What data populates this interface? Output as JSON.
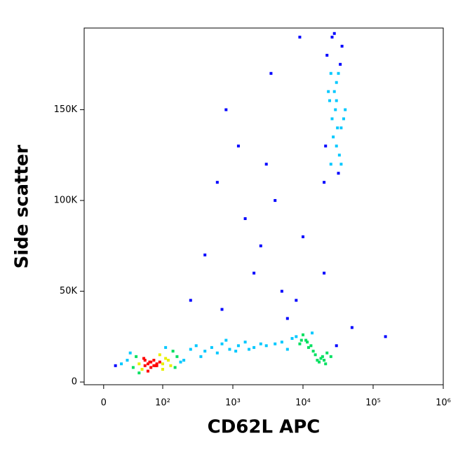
{
  "chart_data": {
    "type": "scatter",
    "x_label": "CD62L APC",
    "y_label": "Side scatter",
    "x": [
      50,
      60,
      70,
      80,
      90,
      100,
      120,
      150,
      40,
      65,
      75,
      85,
      95,
      110,
      130,
      55,
      70,
      80,
      90,
      100,
      60,
      75,
      85,
      95,
      140,
      180,
      45,
      30,
      20,
      160,
      200,
      110,
      88,
      78,
      68,
      3000,
      5000,
      7000,
      9000,
      11000,
      13000,
      15000,
      18000,
      20000,
      25000,
      8000,
      10000,
      12000,
      14000,
      16000,
      6000,
      4000,
      22000,
      30000,
      17000,
      19000,
      9500,
      11500,
      13500,
      21000,
      250,
      300,
      400,
      500,
      700,
      900,
      1200,
      1500,
      2000,
      2500,
      350,
      600,
      800,
      1100,
      1700,
      20000,
      25000,
      30000,
      35000,
      40000,
      28000,
      32000,
      22000,
      26000,
      38000,
      24000,
      30000,
      34000,
      27000,
      33000,
      29000,
      36000,
      23000,
      31000,
      25000,
      21000,
      35000,
      28000,
      30000,
      26000,
      32000,
      700,
      2000,
      1500,
      5000,
      3000,
      800,
      400,
      10000,
      6000,
      250,
      1200,
      4000,
      20000,
      8000,
      50000,
      150000,
      600,
      3500,
      9000,
      2500
    ],
    "y": [
      8000,
      10000,
      9000,
      11000,
      9000,
      10000,
      12000,
      8000,
      12000,
      7000,
      10000,
      9000,
      11000,
      13000,
      9000,
      14000,
      12000,
      8000,
      10000,
      7000,
      5000,
      6000,
      12000,
      15000,
      17000,
      11000,
      16000,
      10000,
      9000,
      14000,
      12000,
      19000,
      9000,
      11000,
      13000,
      20000,
      22000,
      24000,
      21000,
      23000,
      20000,
      15000,
      13000,
      12000,
      14000,
      25000,
      26000,
      19000,
      17000,
      12000,
      18000,
      21000,
      16000,
      20000,
      11000,
      14000,
      23000,
      22000,
      27000,
      10000,
      18000,
      20000,
      17000,
      19000,
      21000,
      18000,
      20000,
      22000,
      19000,
      21000,
      14000,
      16000,
      23000,
      17000,
      18000,
      110000,
      120000,
      130000,
      140000,
      150000,
      160000,
      170000,
      180000,
      190000,
      145000,
      155000,
      165000,
      175000,
      135000,
      125000,
      150000,
      185000,
      160000,
      140000,
      170000,
      130000,
      120000,
      192000,
      155000,
      145000,
      115000,
      40000,
      60000,
      90000,
      50000,
      120000,
      150000,
      70000,
      80000,
      35000,
      45000,
      130000,
      100000,
      60000,
      45000,
      30000,
      25000,
      110000,
      170000,
      190000,
      75000
    ],
    "xlim": [
      -33,
      1000000
    ],
    "xticks": [
      0,
      {
        "value": 100,
        "label": "10²"
      },
      {
        "value": 1000,
        "label": "10³"
      },
      {
        "value": 10000,
        "label": "10⁴"
      },
      {
        "value": 100000,
        "label": "10⁵"
      },
      {
        "value": 1000000,
        "label": "10⁶"
      }
    ],
    "ylim": [
      -1500,
      195000
    ],
    "yticks": [
      0,
      {
        "value": 50000,
        "label": "50K"
      },
      {
        "value": 100000,
        "label": "100K"
      },
      {
        "value": 150000,
        "label": "150K"
      }
    ],
    "colormap": [
      "#0000ff",
      "#00c8ff",
      "#00e060",
      "#e8f000",
      "#ff0000"
    ]
  }
}
